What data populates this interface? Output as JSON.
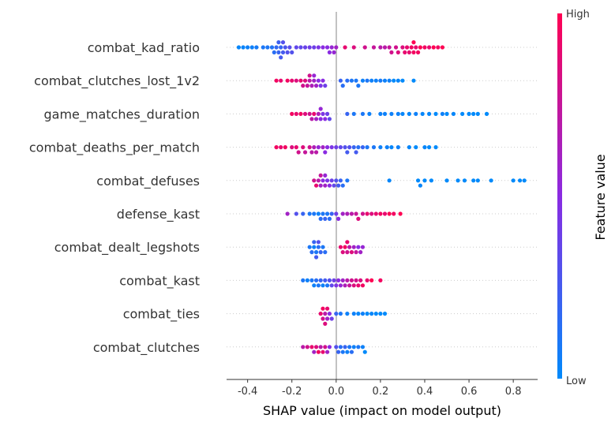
{
  "chart_data": {
    "type": "scatter",
    "subtype": "shap-beeswarm",
    "xlabel": "SHAP value (impact on model output)",
    "xlim": [
      -0.495,
      0.91
    ],
    "xticks": [
      "-0.4",
      "-0.2",
      "0.0",
      "0.2",
      "0.4",
      "0.6",
      "0.8"
    ],
    "xtick_values": [
      -0.4,
      -0.2,
      0.0,
      0.2,
      0.4,
      0.6,
      0.8
    ],
    "colorbar": {
      "label": "Feature value",
      "high": "High",
      "low": "Low",
      "low_color": "#008afb",
      "mid_color": "#8a2be2",
      "high_color": "#ff0052"
    },
    "features": [
      {
        "name": "combat_kad_ratio",
        "shap": [
          -0.44,
          -0.42,
          -0.4,
          -0.38,
          -0.36,
          -0.33,
          -0.31,
          -0.29,
          -0.28,
          -0.27,
          -0.26,
          -0.26,
          -0.25,
          -0.25,
          -0.24,
          -0.24,
          -0.23,
          -0.22,
          -0.21,
          -0.2,
          -0.18,
          -0.16,
          -0.14,
          -0.12,
          -0.1,
          -0.08,
          -0.06,
          -0.04,
          -0.03,
          -0.02,
          -0.01,
          0.0,
          0.04,
          0.08,
          0.13,
          0.17,
          0.2,
          0.22,
          0.24,
          0.25,
          0.27,
          0.28,
          0.3,
          0.31,
          0.32,
          0.33,
          0.34,
          0.35,
          0.35,
          0.36,
          0.37,
          0.38,
          0.4,
          0.42,
          0.44,
          0.46,
          0.48
        ],
        "value": [
          0.02,
          0.03,
          0.05,
          0.05,
          0.08,
          0.1,
          0.1,
          0.12,
          0.15,
          0.18,
          0.2,
          0.22,
          0.2,
          0.25,
          0.25,
          0.3,
          0.28,
          0.3,
          0.32,
          0.3,
          0.35,
          0.35,
          0.38,
          0.4,
          0.4,
          0.45,
          0.5,
          0.5,
          0.5,
          0.55,
          0.55,
          0.6,
          0.9,
          0.85,
          0.8,
          0.75,
          0.7,
          0.7,
          0.75,
          0.8,
          0.8,
          0.85,
          0.85,
          0.9,
          0.9,
          0.9,
          0.95,
          0.95,
          1.0,
          0.9,
          0.95,
          1.0,
          0.95,
          0.9,
          1.0,
          0.95,
          1.0
        ]
      },
      {
        "name": "combat_clutches_lost_1v2",
        "shap": [
          -0.27,
          -0.25,
          -0.22,
          -0.2,
          -0.18,
          -0.16,
          -0.15,
          -0.14,
          -0.13,
          -0.12,
          -0.12,
          -0.11,
          -0.1,
          -0.1,
          -0.09,
          -0.08,
          -0.07,
          -0.06,
          -0.05,
          0.02,
          0.03,
          0.05,
          0.07,
          0.09,
          0.1,
          0.12,
          0.14,
          0.16,
          0.18,
          0.2,
          0.22,
          0.24,
          0.26,
          0.28,
          0.3,
          0.35
        ],
        "value": [
          0.95,
          0.9,
          0.95,
          0.9,
          0.85,
          0.9,
          0.8,
          0.85,
          0.75,
          0.7,
          0.8,
          0.65,
          0.6,
          0.55,
          0.6,
          0.5,
          0.45,
          0.5,
          0.4,
          0.2,
          0.15,
          0.15,
          0.1,
          0.1,
          0.1,
          0.05,
          0.1,
          0.05,
          0.05,
          0.08,
          0.05,
          0.05,
          0.0,
          0.02,
          0.0,
          0.0
        ]
      },
      {
        "name": "game_matches_duration",
        "shap": [
          -0.2,
          -0.18,
          -0.16,
          -0.14,
          -0.12,
          -0.11,
          -0.1,
          -0.09,
          -0.08,
          -0.07,
          -0.07,
          -0.06,
          -0.05,
          -0.04,
          -0.03,
          0.05,
          0.08,
          0.12,
          0.15,
          0.2,
          0.22,
          0.25,
          0.28,
          0.3,
          0.33,
          0.36,
          0.39,
          0.42,
          0.45,
          0.48,
          0.5,
          0.53,
          0.57,
          0.6,
          0.62,
          0.64,
          0.68
        ],
        "value": [
          0.95,
          0.9,
          0.95,
          0.85,
          0.8,
          0.7,
          0.9,
          0.6,
          0.65,
          0.5,
          0.55,
          0.45,
          0.5,
          0.4,
          0.35,
          0.2,
          0.1,
          0.1,
          0.05,
          0.05,
          0.05,
          0.05,
          0.05,
          0.02,
          0.02,
          0.05,
          0.02,
          0.02,
          0.0,
          0.05,
          0.0,
          0.02,
          0.0,
          0.0,
          0.0,
          0.0,
          0.0
        ]
      },
      {
        "name": "combat_deaths_per_match",
        "shap": [
          -0.27,
          -0.25,
          -0.23,
          -0.2,
          -0.18,
          -0.17,
          -0.15,
          -0.14,
          -0.12,
          -0.11,
          -0.1,
          -0.09,
          -0.08,
          -0.06,
          -0.05,
          -0.04,
          -0.02,
          0.0,
          0.02,
          0.04,
          0.05,
          0.06,
          0.08,
          0.09,
          0.1,
          0.12,
          0.14,
          0.17,
          0.2,
          0.23,
          0.25,
          0.28,
          0.33,
          0.36,
          0.4,
          0.42,
          0.45
        ],
        "value": [
          0.95,
          0.9,
          0.95,
          0.85,
          0.9,
          0.8,
          0.85,
          0.75,
          0.8,
          0.7,
          0.65,
          0.7,
          0.55,
          0.6,
          0.5,
          0.5,
          0.45,
          0.4,
          0.35,
          0.3,
          0.25,
          0.3,
          0.2,
          0.25,
          0.15,
          0.2,
          0.1,
          0.1,
          0.05,
          0.05,
          0.02,
          0.05,
          0.02,
          0.0,
          0.02,
          0.0,
          0.0
        ]
      },
      {
        "name": "combat_defuses",
        "shap": [
          -0.1,
          -0.09,
          -0.08,
          -0.07,
          -0.07,
          -0.06,
          -0.05,
          -0.05,
          -0.04,
          -0.03,
          -0.02,
          -0.01,
          0.0,
          0.01,
          0.02,
          0.03,
          0.05,
          0.24,
          0.37,
          0.38,
          0.4,
          0.43,
          0.5,
          0.55,
          0.58,
          0.62,
          0.64,
          0.7,
          0.8,
          0.83,
          0.85
        ],
        "value": [
          0.8,
          0.9,
          0.7,
          0.6,
          0.75,
          0.5,
          0.6,
          0.55,
          0.45,
          0.5,
          0.4,
          0.35,
          0.3,
          0.25,
          0.2,
          0.15,
          0.1,
          0.02,
          0.0,
          0.02,
          0.0,
          0.0,
          0.0,
          0.0,
          0.0,
          0.0,
          0.0,
          0.0,
          0.0,
          0.0,
          0.0
        ]
      },
      {
        "name": "defense_kast",
        "shap": [
          -0.22,
          -0.18,
          -0.15,
          -0.12,
          -0.1,
          -0.08,
          -0.07,
          -0.06,
          -0.05,
          -0.04,
          -0.03,
          -0.02,
          0.0,
          0.01,
          0.03,
          0.05,
          0.07,
          0.09,
          0.1,
          0.12,
          0.14,
          0.16,
          0.18,
          0.2,
          0.22,
          0.24,
          0.26,
          0.29
        ],
        "value": [
          0.6,
          0.3,
          0.2,
          0.1,
          0.1,
          0.05,
          0.15,
          0.1,
          0.2,
          0.1,
          0.15,
          0.2,
          0.4,
          0.5,
          0.6,
          0.65,
          0.7,
          0.75,
          0.85,
          0.8,
          0.9,
          0.85,
          0.9,
          0.95,
          0.9,
          1.0,
          0.95,
          1.0
        ]
      },
      {
        "name": "combat_dealt_legshots",
        "shap": [
          -0.12,
          -0.11,
          -0.1,
          -0.1,
          -0.09,
          -0.09,
          -0.08,
          -0.08,
          -0.07,
          -0.06,
          -0.05,
          0.02,
          0.03,
          0.04,
          0.05,
          0.05,
          0.06,
          0.07,
          0.08,
          0.09,
          0.1,
          0.11,
          0.12
        ],
        "value": [
          0.1,
          0.15,
          0.05,
          0.2,
          0.1,
          0.25,
          0.15,
          0.3,
          0.2,
          0.1,
          0.15,
          0.9,
          0.85,
          0.95,
          0.8,
          0.9,
          0.7,
          0.85,
          0.6,
          0.75,
          0.5,
          0.6,
          0.55
        ]
      },
      {
        "name": "combat_kast",
        "shap": [
          -0.15,
          -0.13,
          -0.11,
          -0.1,
          -0.09,
          -0.08,
          -0.07,
          -0.06,
          -0.05,
          -0.04,
          -0.03,
          -0.02,
          -0.01,
          0.0,
          0.01,
          0.02,
          0.03,
          0.04,
          0.05,
          0.06,
          0.07,
          0.08,
          0.09,
          0.1,
          0.11,
          0.12,
          0.14,
          0.16,
          0.2
        ],
        "value": [
          0.1,
          0.05,
          0.1,
          0.05,
          0.15,
          0.1,
          0.2,
          0.05,
          0.25,
          0.1,
          0.3,
          0.35,
          0.4,
          0.45,
          0.5,
          0.55,
          0.6,
          0.65,
          0.7,
          0.75,
          0.8,
          0.85,
          0.8,
          0.9,
          0.85,
          0.95,
          0.9,
          1.0,
          0.95
        ]
      },
      {
        "name": "combat_ties",
        "shap": [
          -0.07,
          -0.06,
          -0.06,
          -0.05,
          -0.05,
          -0.04,
          -0.04,
          -0.03,
          -0.02,
          0.0,
          0.02,
          0.05,
          0.08,
          0.1,
          0.12,
          0.14,
          0.16,
          0.18,
          0.2,
          0.22
        ],
        "value": [
          0.9,
          0.8,
          0.95,
          0.7,
          0.85,
          0.6,
          0.9,
          0.5,
          0.4,
          0.2,
          0.1,
          0.05,
          0.05,
          0.02,
          0.05,
          0.0,
          0.02,
          0.0,
          0.0,
          0.0
        ]
      },
      {
        "name": "combat_clutches",
        "shap": [
          -0.15,
          -0.13,
          -0.11,
          -0.1,
          -0.09,
          -0.08,
          -0.07,
          -0.06,
          -0.05,
          -0.04,
          -0.03,
          0.0,
          0.01,
          0.02,
          0.03,
          0.04,
          0.05,
          0.06,
          0.07,
          0.08,
          0.1,
          0.12,
          0.13
        ],
        "value": [
          0.7,
          0.8,
          0.9,
          0.6,
          0.85,
          0.95,
          0.7,
          0.9,
          0.8,
          0.6,
          0.5,
          0.3,
          0.2,
          0.15,
          0.1,
          0.2,
          0.05,
          0.1,
          0.15,
          0.05,
          0.1,
          0.05,
          0.0
        ]
      }
    ]
  }
}
